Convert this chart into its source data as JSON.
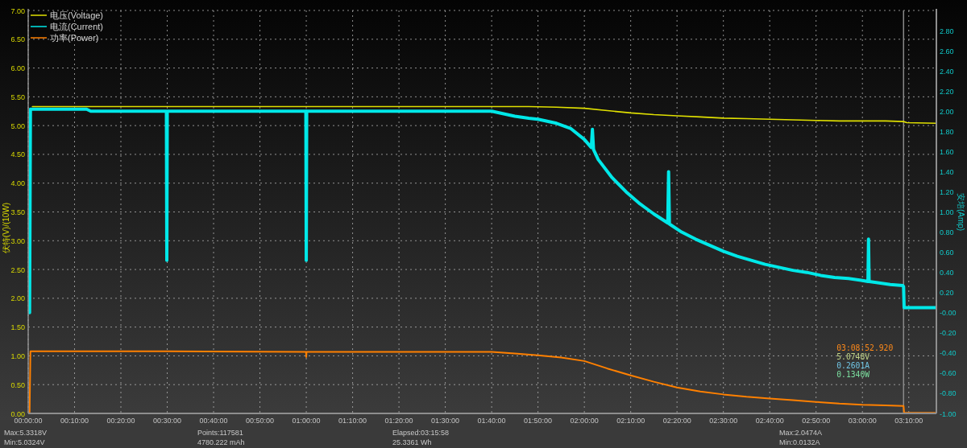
{
  "chart_data": {
    "type": "line",
    "ylabel": "伏特(V)/(10W)",
    "y2label": "安培(Amp)",
    "xlim": [
      0,
      3.266
    ],
    "xticks": [
      {
        "value": 0,
        "label": "00:00:00"
      },
      {
        "value": 0.1667,
        "label": "00:10:00"
      },
      {
        "value": 0.3333,
        "label": "00:20:00"
      },
      {
        "value": 0.5,
        "label": "00:30:00"
      },
      {
        "value": 0.6667,
        "label": "00:40:00"
      },
      {
        "value": 0.8333,
        "label": "00:50:00"
      },
      {
        "value": 1,
        "label": "01:00:00"
      },
      {
        "value": 1.1667,
        "label": "01:10:00"
      },
      {
        "value": 1.3333,
        "label": "01:20:00"
      },
      {
        "value": 1.5,
        "label": "01:30:00"
      },
      {
        "value": 1.6667,
        "label": "01:40:00"
      },
      {
        "value": 1.8333,
        "label": "01:50:00"
      },
      {
        "value": 2,
        "label": "02:00:00"
      },
      {
        "value": 2.1667,
        "label": "02:10:00"
      },
      {
        "value": 2.3333,
        "label": "02:20:00"
      },
      {
        "value": 2.5,
        "label": "02:30:00"
      },
      {
        "value": 2.6667,
        "label": "02:40:00"
      },
      {
        "value": 2.8333,
        "label": "02:50:00"
      },
      {
        "value": 3,
        "label": "03:00:00"
      },
      {
        "value": 3.1667,
        "label": "03:10:00"
      }
    ],
    "ylim": [
      0,
      7
    ],
    "yticks": [
      {
        "value": 0,
        "label": "0.00"
      },
      {
        "value": 0.5,
        "label": "0.50"
      },
      {
        "value": 1,
        "label": "1.00"
      },
      {
        "value": 1.5,
        "label": "1.50"
      },
      {
        "value": 2,
        "label": "2.00"
      },
      {
        "value": 2.5,
        "label": "2.50"
      },
      {
        "value": 3,
        "label": "3.00"
      },
      {
        "value": 3.5,
        "label": "3.50"
      },
      {
        "value": 4,
        "label": "4.00"
      },
      {
        "value": 4.5,
        "label": "4.50"
      },
      {
        "value": 5,
        "label": "5.00"
      },
      {
        "value": 5.5,
        "label": "5.50"
      },
      {
        "value": 6,
        "label": "6.00"
      },
      {
        "value": 6.5,
        "label": "6.50"
      },
      {
        "value": 7,
        "label": "7.00"
      }
    ],
    "y2lim": [
      -1,
      3
    ],
    "y2ticks": [
      {
        "value": -1,
        "label": "-1.00"
      },
      {
        "value": -0.8,
        "label": "-0.80"
      },
      {
        "value": -0.6,
        "label": "-0.60"
      },
      {
        "value": -0.4,
        "label": "-0.40"
      },
      {
        "value": -0.2,
        "label": "-0.20"
      },
      {
        "value": 0,
        "label": "-0.00"
      },
      {
        "value": 0.2,
        "label": "0.20"
      },
      {
        "value": 0.4,
        "label": "0.40"
      },
      {
        "value": 0.6,
        "label": "0.60"
      },
      {
        "value": 0.8,
        "label": "0.80"
      },
      {
        "value": 1,
        "label": "1.00"
      },
      {
        "value": 1.2,
        "label": "1.20"
      },
      {
        "value": 1.4,
        "label": "1.40"
      },
      {
        "value": 1.6,
        "label": "1.60"
      },
      {
        "value": 1.8,
        "label": "1.80"
      },
      {
        "value": 2,
        "label": "2.00"
      },
      {
        "value": 2.2,
        "label": "2.20"
      },
      {
        "value": 2.4,
        "label": "2.40"
      },
      {
        "value": 2.6,
        "label": "2.60"
      },
      {
        "value": 2.8,
        "label": "2.80"
      }
    ],
    "grid": true,
    "legend": "top left",
    "series": [
      {
        "name": "电压(Voltage)",
        "color": "#e0e000",
        "x": [
          0.015,
          0.2,
          0.5,
          1.0,
          1.5,
          1.667,
          1.72,
          1.8,
          1.9,
          2.0,
          2.083,
          2.167,
          2.25,
          2.333,
          2.417,
          2.5,
          2.583,
          2.667,
          2.75,
          2.833,
          2.917,
          3.0,
          3.083,
          3.148,
          3.16,
          3.266
        ],
        "values": [
          5.33,
          5.33,
          5.33,
          5.33,
          5.33,
          5.33,
          5.33,
          5.33,
          5.32,
          5.3,
          5.26,
          5.22,
          5.19,
          5.17,
          5.15,
          5.13,
          5.12,
          5.11,
          5.1,
          5.09,
          5.08,
          5.08,
          5.08,
          5.07,
          5.05,
          5.04
        ]
      },
      {
        "name": "电流(Current)",
        "color": "#00e8e8",
        "axis": "y2",
        "x": [
          0.005,
          0.008,
          0.1,
          0.21,
          0.225,
          0.497,
          0.4985,
          0.5,
          0.6,
          0.8,
          0.9985,
          1.0,
          1.0015,
          1.2,
          1.4,
          1.667,
          1.7,
          1.75,
          1.8,
          1.833,
          1.9,
          1.95,
          2.0,
          2.025,
          2.029,
          2.033,
          2.05,
          2.1,
          2.15,
          2.2,
          2.25,
          2.3,
          2.303,
          2.306,
          2.35,
          2.4,
          2.45,
          2.5,
          2.55,
          2.6,
          2.65,
          2.7,
          2.75,
          2.8,
          2.85,
          2.9,
          2.95,
          3.0,
          3.02,
          3.022,
          3.024,
          3.05,
          3.1,
          3.145,
          3.148,
          3.15,
          3.2,
          3.266
        ],
        "values": [
          0.0,
          2.02,
          2.02,
          2.02,
          2.0,
          2.0,
          0.52,
          2.0,
          2.0,
          2.0,
          2.0,
          0.52,
          2.0,
          2.0,
          2.0,
          2.0,
          1.98,
          1.95,
          1.93,
          1.92,
          1.88,
          1.83,
          1.72,
          1.64,
          1.82,
          1.62,
          1.52,
          1.34,
          1.2,
          1.08,
          0.98,
          0.89,
          1.4,
          0.88,
          0.8,
          0.73,
          0.67,
          0.61,
          0.56,
          0.52,
          0.48,
          0.45,
          0.42,
          0.4,
          0.37,
          0.35,
          0.34,
          0.32,
          0.31,
          0.73,
          0.31,
          0.3,
          0.28,
          0.27,
          0.26,
          0.05,
          0.05,
          0.05
        ]
      },
      {
        "name": "功率(Power)",
        "color": "#ff8000",
        "x": [
          0.005,
          0.008,
          0.2,
          0.5,
          0.999,
          1.0,
          1.001,
          1.5,
          1.667,
          1.75,
          1.833,
          1.917,
          2.0,
          2.083,
          2.167,
          2.25,
          2.333,
          2.417,
          2.5,
          2.583,
          2.667,
          2.75,
          2.833,
          2.917,
          3.0,
          3.083,
          3.148,
          3.15,
          3.266
        ],
        "values": [
          0.02,
          1.08,
          1.08,
          1.08,
          1.07,
          0.98,
          1.07,
          1.07,
          1.07,
          1.04,
          1.01,
          0.97,
          0.91,
          0.78,
          0.66,
          0.55,
          0.45,
          0.38,
          0.33,
          0.29,
          0.26,
          0.23,
          0.2,
          0.17,
          0.15,
          0.14,
          0.13,
          0.01,
          0.01
        ]
      }
    ],
    "ref_lines": [
      {
        "axis": "x",
        "value": 3.148,
        "color": "#8a8a8a"
      }
    ],
    "annotations": [
      "03:08:52.920",
      "5.0748V",
      "0.2601A",
      "0.1340W",
      "Max:5.3318V",
      "Min:5.0324V",
      "Points:117581",
      "4780.222 mAh",
      "Elapsed:03:15:58",
      "25.3361 Wh",
      "Max:2.0474A",
      "Min:0.0132A"
    ]
  }
}
